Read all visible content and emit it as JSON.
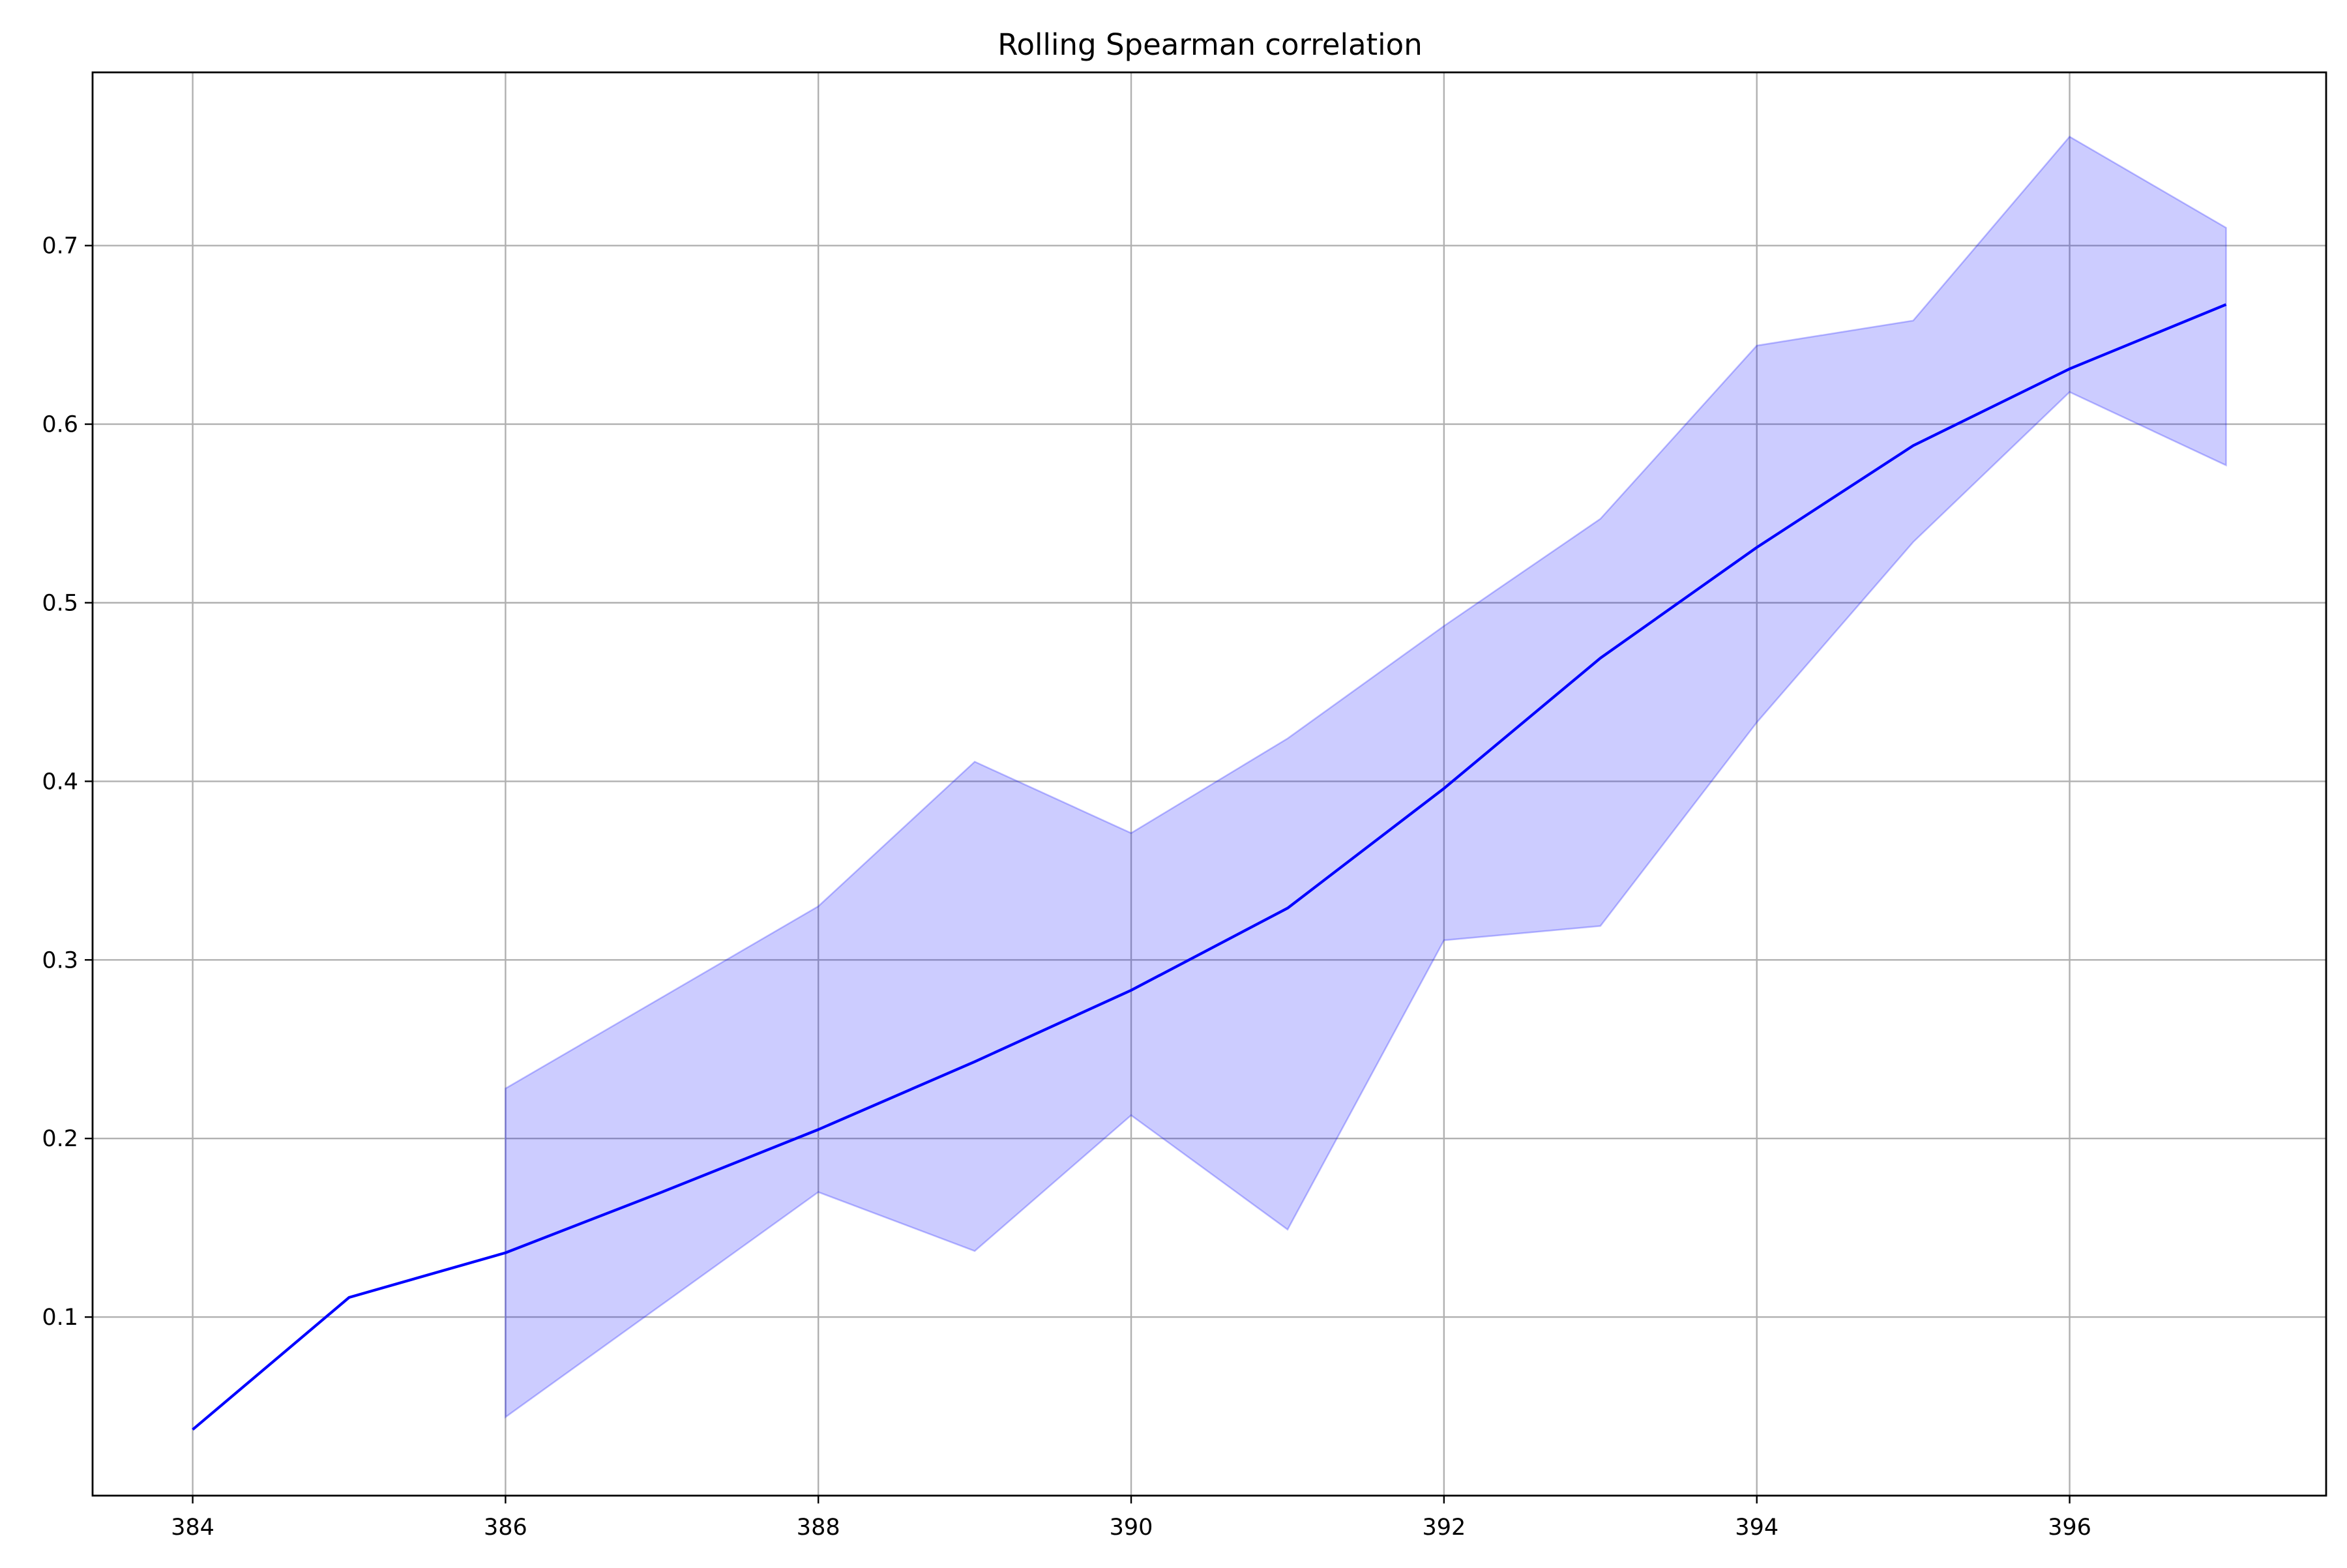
{
  "chart_data": {
    "type": "line",
    "title": "Rolling Spearman correlation",
    "xlabel": "",
    "ylabel": "",
    "x": [
      384,
      385,
      386,
      387,
      388,
      389,
      390,
      391,
      392,
      393,
      394,
      395,
      396,
      397
    ],
    "series": [
      {
        "values": [
          0.037,
          0.111,
          0.136,
          0.17,
          0.205,
          0.243,
          0.283,
          0.329,
          0.396,
          0.469,
          0.531,
          0.588,
          0.631,
          0.667
        ],
        "color": "#0000ff"
      }
    ],
    "band": {
      "x": [
        386,
        388,
        389,
        390,
        391,
        392,
        393,
        394,
        395,
        396,
        397
      ],
      "upper": [
        0.228,
        0.33,
        0.411,
        0.371,
        0.424,
        0.487,
        0.547,
        0.644,
        0.658,
        0.761,
        0.71
      ],
      "lower": [
        0.044,
        0.17,
        0.137,
        0.213,
        0.149,
        0.311,
        0.319,
        0.433,
        0.534,
        0.618,
        0.577
      ],
      "color": "#0000ff",
      "opacity": 0.2
    },
    "xlim": [
      383.36,
      397.64
    ],
    "ylim": [
      0.0,
      0.797
    ],
    "xticks": [
      384,
      386,
      388,
      390,
      392,
      394,
      396
    ],
    "yticks": [
      0.1,
      0.2,
      0.3,
      0.4,
      0.5,
      0.6,
      0.7
    ],
    "grid": true,
    "legend": "none"
  }
}
